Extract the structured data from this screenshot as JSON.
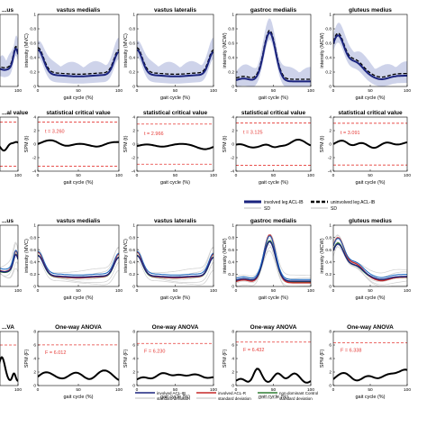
{
  "colors": {
    "band": "#c6cbe6",
    "mean": "#1a237e",
    "threshold": "#e53935",
    "spm": "#000000",
    "axis": "#000000",
    "involved_acl_r": "#c62828",
    "non_dominant_control": "#2e7d32",
    "control_alt": "#1565c0",
    "grey": "#bdbdbd",
    "annotation": "#e53935"
  },
  "legends": {
    "top": {
      "mean": "involved leg ACL-IB",
      "sd": "SD",
      "uninvolved": "uninvolved leg ACL-IB",
      "sd2": "SD"
    },
    "bottom": {
      "a": "involved ACL-IB",
      "b": "involved ACL-R",
      "c": "non-dominant Control",
      "sd1": "standard deviation",
      "sd2": "standard deviation",
      "sd3": "standard deviation"
    }
  },
  "chart_data": [
    {
      "row": 0,
      "col": 0,
      "type": "line",
      "title": "...us",
      "xlabel": "gait cycle (%)",
      "ylabel": "",
      "xlim": [
        0,
        100
      ],
      "ylim": [
        0,
        1
      ],
      "x_ticks": [
        "100"
      ],
      "y_ticks": [],
      "curve": "mean_band",
      "profile": "flat_end_peak"
    },
    {
      "row": 0,
      "col": 1,
      "type": "line",
      "title": "vastus medialis",
      "xlabel": "gait cycle (%)",
      "ylabel": "intensity (MVC)",
      "xlim": [
        0,
        100
      ],
      "ylim": [
        0,
        1
      ],
      "x_ticks": [
        "0",
        "50",
        "100"
      ],
      "y_ticks": [
        "0",
        "0.2",
        "0.4",
        "0.6",
        "0.8",
        "1"
      ],
      "curve": "mean_band",
      "profile": "u_shape"
    },
    {
      "row": 0,
      "col": 2,
      "type": "line",
      "title": "vastus lateralis",
      "xlabel": "gait cycle (%)",
      "ylabel": "intensity (MVC)",
      "xlim": [
        0,
        100
      ],
      "ylim": [
        0,
        1
      ],
      "x_ticks": [
        "0",
        "50",
        "100"
      ],
      "y_ticks": [
        "0",
        "0.2",
        "0.4",
        "0.6",
        "0.8",
        "1"
      ],
      "curve": "mean_band",
      "profile": "u_shape"
    },
    {
      "row": 0,
      "col": 3,
      "type": "line",
      "title": "gastroc medialis",
      "xlabel": "gait cycle (%)",
      "ylabel": "intensity (MCW)",
      "xlim": [
        0,
        100
      ],
      "ylim": [
        0,
        1
      ],
      "x_ticks": [
        "0",
        "50",
        "100"
      ],
      "y_ticks": [
        "0",
        "0.2",
        "0.4",
        "0.6",
        "0.8",
        "1"
      ],
      "curve": "mean_band",
      "profile": "mid_peak"
    },
    {
      "row": 0,
      "col": 4,
      "type": "line",
      "title": "gluteus medius",
      "xlabel": "gait cycle (%)",
      "ylabel": "intensity (MCW)",
      "xlim": [
        0,
        100
      ],
      "ylim": [
        0,
        1
      ],
      "x_ticks": [
        "0",
        "50",
        "100"
      ],
      "y_ticks": [
        "0",
        "0.2",
        "0.4",
        "0.6",
        "0.8",
        "1"
      ],
      "curve": "mean_band",
      "profile": "early_peak"
    },
    {
      "row": 1,
      "col": 0,
      "type": "line",
      "title": "...al value",
      "xlabel": "gait cycle (%)",
      "ylabel": "",
      "xlim": [
        0,
        100
      ],
      "ylim": [
        -4,
        4
      ],
      "x_ticks": [
        "100"
      ],
      "y_ticks": [],
      "curve": "spm",
      "annotation": "",
      "threshold": 3.26,
      "profile": "spm_a"
    },
    {
      "row": 1,
      "col": 1,
      "type": "line",
      "title": "statistical critical value",
      "xlabel": "gait cycle (%)",
      "ylabel": "SPM {t}",
      "xlim": [
        0,
        100
      ],
      "ylim": [
        -4,
        4
      ],
      "x_ticks": [
        "0",
        "50",
        "100"
      ],
      "y_ticks": [
        "-4",
        "-2",
        "0",
        "2",
        "4"
      ],
      "curve": "spm",
      "annotation": "t = 3.260",
      "threshold": 3.26,
      "profile": "spm_b"
    },
    {
      "row": 1,
      "col": 2,
      "type": "line",
      "title": "statistical critical value",
      "xlabel": "gait cycle (%)",
      "ylabel": "SPM {t}",
      "xlim": [
        0,
        100
      ],
      "ylim": [
        -4,
        4
      ],
      "x_ticks": [
        "0",
        "50",
        "100"
      ],
      "y_ticks": [
        "-4",
        "-2",
        "0",
        "2",
        "4"
      ],
      "curve": "spm",
      "annotation": "t = 2.966",
      "threshold": 2.966,
      "profile": "spm_c"
    },
    {
      "row": 1,
      "col": 3,
      "type": "line",
      "title": "statistical critical value",
      "xlabel": "gait cycle (%)",
      "ylabel": "SPM {t}",
      "xlim": [
        0,
        100
      ],
      "ylim": [
        -4,
        4
      ],
      "x_ticks": [
        "0",
        "50",
        "100"
      ],
      "y_ticks": [
        "-4",
        "-2",
        "0",
        "2",
        "4"
      ],
      "curve": "spm",
      "annotation": "t = 3.125",
      "threshold": 3.125,
      "profile": "spm_d"
    },
    {
      "row": 1,
      "col": 4,
      "type": "line",
      "title": "statistical critical value",
      "xlabel": "gait cycle (%)",
      "ylabel": "SPM {t}",
      "xlim": [
        0,
        100
      ],
      "ylim": [
        -4,
        4
      ],
      "x_ticks": [
        "0",
        "50",
        "100"
      ],
      "y_ticks": [
        "-4",
        "-2",
        "0",
        "2",
        "4"
      ],
      "curve": "spm",
      "annotation": "t = 3.091",
      "threshold": 3.091,
      "profile": "spm_e"
    },
    {
      "row": 2,
      "col": 0,
      "type": "line",
      "title": "...us",
      "xlabel": "gait cycle (%)",
      "ylabel": "",
      "xlim": [
        0,
        100
      ],
      "ylim": [
        0,
        1
      ],
      "x_ticks": [
        "100"
      ],
      "y_ticks": [],
      "curve": "multi",
      "profile": "flat_end_peak"
    },
    {
      "row": 2,
      "col": 1,
      "type": "line",
      "title": "vastus medialis",
      "xlabel": "gait cycle (%)",
      "ylabel": "intensity (MVC)",
      "xlim": [
        0,
        100
      ],
      "ylim": [
        0,
        1
      ],
      "x_ticks": [
        "0",
        "50",
        "100"
      ],
      "y_ticks": [
        "0",
        "0.2",
        "0.4",
        "0.6",
        "0.8",
        "1"
      ],
      "curve": "multi",
      "profile": "u_shape"
    },
    {
      "row": 2,
      "col": 2,
      "type": "line",
      "title": "vastus lateralis",
      "xlabel": "gait cycle (%)",
      "ylabel": "intensity (MVC)",
      "xlim": [
        0,
        100
      ],
      "ylim": [
        0,
        1
      ],
      "x_ticks": [
        "0",
        "50",
        "100"
      ],
      "y_ticks": [
        "0",
        "0.2",
        "0.4",
        "0.6",
        "0.8",
        "1"
      ],
      "curve": "multi",
      "profile": "u_shape"
    },
    {
      "row": 2,
      "col": 3,
      "type": "line",
      "title": "gastroc medialis",
      "xlabel": "gait cycle (%)",
      "ylabel": "intensity (MCW)",
      "xlim": [
        0,
        100
      ],
      "ylim": [
        0,
        1
      ],
      "x_ticks": [
        "0",
        "50",
        "100"
      ],
      "y_ticks": [
        "0",
        "0.2",
        "0.4",
        "0.6",
        "0.8",
        "1"
      ],
      "curve": "multi",
      "profile": "mid_peak"
    },
    {
      "row": 2,
      "col": 4,
      "type": "line",
      "title": "gluteus medius",
      "xlabel": "gait cycle (%)",
      "ylabel": "intensity (MCW)",
      "xlim": [
        0,
        100
      ],
      "ylim": [
        0,
        1
      ],
      "x_ticks": [
        "0",
        "50",
        "100"
      ],
      "y_ticks": [
        "0",
        "0.2",
        "0.4",
        "0.6",
        "0.8",
        "1"
      ],
      "curve": "multi",
      "profile": "early_peak"
    },
    {
      "row": 3,
      "col": 0,
      "type": "line",
      "title": "...VA",
      "xlabel": "",
      "xlim": [
        0,
        100
      ],
      "ylim": [
        0,
        8
      ],
      "x_ticks": [
        "100"
      ],
      "y_ticks": [],
      "curve": "spm_f",
      "annotation": "",
      "threshold": 6.0,
      "profile": "anova_a"
    },
    {
      "row": 3,
      "col": 1,
      "type": "line",
      "title": "One-way ANOVA",
      "xlabel": "gait cycle (%)",
      "ylabel": "SPM {F}",
      "xlim": [
        0,
        100
      ],
      "ylim": [
        0,
        8
      ],
      "x_ticks": [
        "0",
        "50",
        "100"
      ],
      "y_ticks": [
        "0",
        "2",
        "4",
        "6",
        "8"
      ],
      "curve": "spm_f",
      "annotation": "F = 6.012",
      "threshold": 6.012,
      "profile": "anova_b"
    },
    {
      "row": 3,
      "col": 2,
      "type": "line",
      "title": "One-way ANOVA",
      "xlabel": "gait cycle (%)",
      "ylabel": "SPM {F}",
      "xlim": [
        0,
        100
      ],
      "ylim": [
        0,
        8
      ],
      "x_ticks": [
        "0",
        "50",
        "100"
      ],
      "y_ticks": [
        "0",
        "2",
        "4",
        "6",
        "8"
      ],
      "curve": "spm_f",
      "annotation": "F = 6.230",
      "threshold": 6.23,
      "profile": "anova_c"
    },
    {
      "row": 3,
      "col": 3,
      "type": "line",
      "title": "One-way ANOVA",
      "xlabel": "gait cycle (%)",
      "ylabel": "SPM {F}",
      "xlim": [
        0,
        100
      ],
      "ylim": [
        0,
        8
      ],
      "x_ticks": [
        "0",
        "50",
        "100"
      ],
      "y_ticks": [
        "0",
        "2",
        "4",
        "6",
        "8"
      ],
      "curve": "spm_f",
      "annotation": "F = 6.432",
      "threshold": 6.432,
      "profile": "anova_d"
    },
    {
      "row": 3,
      "col": 4,
      "type": "line",
      "title": "One-way ANOVA",
      "xlabel": "gait cycle (%)",
      "ylabel": "SPM {F}",
      "xlim": [
        0,
        100
      ],
      "ylim": [
        0,
        8
      ],
      "x_ticks": [
        "0",
        "50",
        "100"
      ],
      "y_ticks": [
        "0",
        "2",
        "4",
        "6",
        "8"
      ],
      "curve": "spm_f",
      "annotation": "F = 6.338",
      "threshold": 6.338,
      "profile": "anova_e"
    }
  ]
}
